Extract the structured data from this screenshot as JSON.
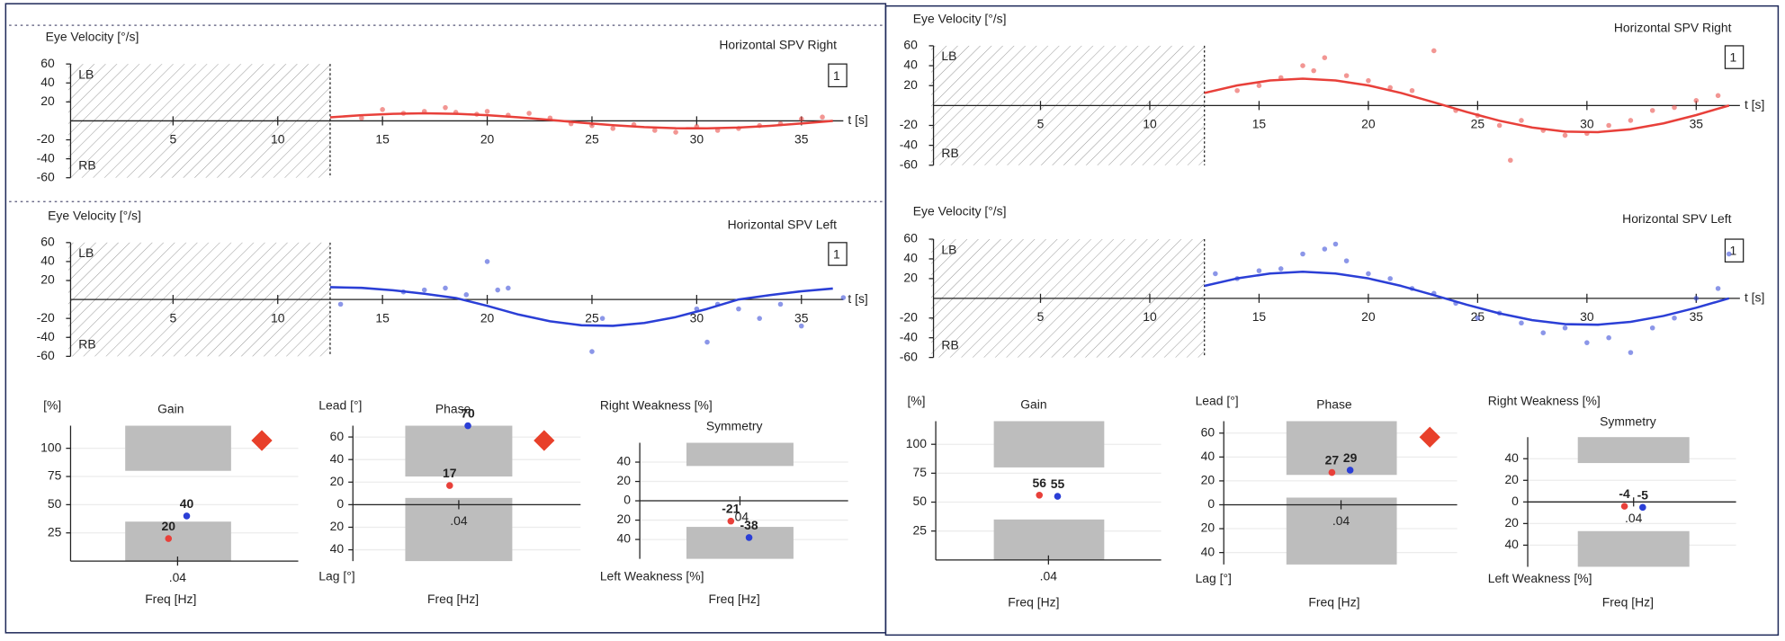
{
  "chart_data": [
    {
      "type": "scatter",
      "title": "Eye Velocity [°/s]",
      "xlabel": "t [s]",
      "annotations": [
        "LB",
        "RB",
        "1"
      ],
      "xlim": [
        0,
        37
      ],
      "xticks": [
        5,
        10,
        15,
        20,
        25,
        30,
        35
      ],
      "ylim": [
        -60,
        60
      ],
      "yticks": [
        60,
        40,
        20,
        -20,
        -40,
        -60
      ],
      "shaded_xlim": [
        0,
        12.5
      ],
      "series": [
        {
          "name": "Horizontal SPV Right",
          "color": "#e8403a",
          "x": [
            14,
            15,
            16,
            17,
            18,
            18.5,
            19.5,
            20,
            21,
            22,
            23,
            24,
            25,
            26,
            27,
            28,
            29,
            30,
            31,
            32,
            33,
            34,
            35,
            36
          ],
          "values": [
            3,
            12,
            8,
            10,
            14,
            9,
            7,
            10,
            6,
            8,
            3,
            -3,
            -5,
            -8,
            -4,
            -10,
            -12,
            -6,
            -10,
            -8,
            -5,
            -3,
            2,
            4
          ],
          "fit_x": [
            12.5,
            14,
            15.5,
            17,
            18.5,
            20,
            21.5,
            23,
            24.5,
            26,
            27.5,
            29,
            30.5,
            32,
            33.5,
            35,
            36.5
          ],
          "fit_values": [
            3.7,
            6,
            7.5,
            8,
            7.5,
            6,
            3.7,
            1,
            -1.9,
            -4.5,
            -6.6,
            -7.8,
            -7.9,
            -7.1,
            -5.3,
            -2.8,
            0
          ]
        }
      ]
    },
    {
      "type": "scatter",
      "title": "Eye Velocity [°/s]",
      "xlabel": "t [s]",
      "annotations": [
        "LB",
        "RB",
        "1"
      ],
      "xlim": [
        0,
        37
      ],
      "xticks": [
        5,
        10,
        15,
        20,
        25,
        30,
        35
      ],
      "ylim": [
        -60,
        60
      ],
      "yticks": [
        60,
        40,
        20,
        -20,
        -40,
        -60
      ],
      "shaded_xlim": [
        0,
        12.5
      ],
      "series": [
        {
          "name": "Horizontal SPV Left",
          "color": "#2b3fd6",
          "x": [
            13,
            16,
            17,
            18,
            19,
            20,
            20.5,
            21,
            25,
            25.5,
            30,
            30.5,
            31,
            32,
            33,
            34,
            35,
            37
          ],
          "values": [
            -5,
            8,
            10,
            12,
            5,
            40,
            10,
            12,
            -55,
            -20,
            -10,
            -45,
            -5,
            -10,
            -20,
            -5,
            -28,
            2
          ],
          "fit_x": [
            12.5,
            14,
            15.5,
            17,
            18.5,
            20,
            21.5,
            23,
            24.5,
            26,
            27.5,
            29,
            30.5,
            32,
            33.5,
            35,
            36.5
          ],
          "fit_values": [
            13,
            12.2,
            9.7,
            6,
            1.6,
            -6.7,
            -15.9,
            -23,
            -27.2,
            -27.8,
            -24.8,
            -18.6,
            -9.9,
            0,
            4.6,
            8.6,
            11.5
          ]
        }
      ]
    },
    {
      "type": "dot",
      "title": "Gain",
      "ylabel": "[%]",
      "xlabel": "Freq [Hz]",
      "categories": [
        ".04"
      ],
      "ylim": [
        0,
        120
      ],
      "yticks": [
        25,
        50,
        75,
        100
      ],
      "bands": [
        [
          80,
          120
        ],
        [
          0,
          35
        ]
      ],
      "alert": true,
      "grid": true,
      "series": [
        {
          "color": "#e8403a",
          "values": [
            20
          ]
        },
        {
          "color": "#2b3fd6",
          "values": [
            40
          ]
        }
      ]
    },
    {
      "type": "dot",
      "title": "Phase",
      "ylabel": "Lead [°]",
      "ylabel_bottom": "Lag [°]",
      "xlabel": "Freq [Hz]",
      "categories": [
        ".04"
      ],
      "ylim": [
        -50,
        70
      ],
      "yticks": [
        60,
        40,
        20,
        0,
        {
          "value": -20,
          "label": "20"
        },
        {
          "value": -40,
          "label": "40"
        }
      ],
      "bands": [
        [
          25,
          70
        ],
        [
          -50,
          6
        ]
      ],
      "alert": true,
      "grid": true,
      "series": [
        {
          "color": "#e8403a",
          "values": [
            17
          ]
        },
        {
          "color": "#2b3fd6",
          "values": [
            70
          ]
        }
      ]
    },
    {
      "type": "dot",
      "title": "Symmetry",
      "ylabel": "Right Weakness [%]",
      "ylabel_bottom": "Left Weakness [%]",
      "xlabel": "Freq [Hz]",
      "categories": [
        ".04"
      ],
      "ylim": [
        -60,
        60
      ],
      "yticks": [
        40,
        20,
        0,
        {
          "value": -20,
          "label": "20"
        },
        {
          "value": -40,
          "label": "40"
        }
      ],
      "bands": [
        [
          36,
          60
        ],
        [
          -60,
          -27
        ]
      ],
      "alert": false,
      "grid": true,
      "series": [
        {
          "color": "#e8403a",
          "values": [
            -21
          ]
        },
        {
          "color": "#2b3fd6",
          "values": [
            -38
          ]
        }
      ]
    },
    {
      "type": "scatter",
      "title": "Eye Velocity [°/s]",
      "xlabel": "t [s]",
      "annotations": [
        "LB",
        "RB",
        "1"
      ],
      "xlim": [
        0,
        37
      ],
      "xticks": [
        5,
        10,
        15,
        20,
        25,
        30,
        35
      ],
      "ylim": [
        -60,
        60
      ],
      "yticks": [
        60,
        40,
        20,
        -20,
        -40,
        -60
      ],
      "shaded_xlim": [
        0,
        12.5
      ],
      "series": [
        {
          "name": "Horizontal SPV Right",
          "color": "#e8403a",
          "x": [
            14,
            15,
            16,
            17,
            17.5,
            18,
            19,
            20,
            21,
            22,
            23,
            24,
            25,
            26,
            26.5,
            27,
            28,
            29,
            30,
            31,
            32,
            33,
            34,
            35,
            36
          ],
          "values": [
            15,
            20,
            28,
            40,
            35,
            48,
            30,
            25,
            18,
            15,
            55,
            -5,
            -10,
            -20,
            -55,
            -15,
            -25,
            -30,
            -28,
            -20,
            -15,
            -5,
            -2,
            5,
            10
          ],
          "fit_x": [
            12.5,
            14,
            15.5,
            17,
            18.5,
            20,
            21.5,
            23,
            24.5,
            26,
            27.5,
            29,
            30.5,
            32,
            33.5,
            35,
            36.5
          ],
          "fit_values": [
            12.6,
            20.2,
            25.2,
            27,
            25.2,
            20.2,
            12.6,
            3.2,
            -6.5,
            -15.3,
            -22.2,
            -26.2,
            -26.8,
            -23.9,
            -17.9,
            -9.6,
            0
          ]
        }
      ]
    },
    {
      "type": "scatter",
      "title": "Eye Velocity [°/s]",
      "xlabel": "t [s]",
      "annotations": [
        "LB",
        "RB",
        "1"
      ],
      "xlim": [
        0,
        37
      ],
      "xticks": [
        5,
        10,
        15,
        20,
        25,
        30,
        35
      ],
      "ylim": [
        -60,
        60
      ],
      "yticks": [
        60,
        40,
        20,
        -20,
        -40,
        -60
      ],
      "shaded_xlim": [
        0,
        12.5
      ],
      "series": [
        {
          "name": "Horizontal SPV Left",
          "color": "#2b3fd6",
          "x": [
            13,
            14,
            15,
            16,
            17,
            18,
            18.5,
            19,
            20,
            21,
            22,
            23,
            24,
            25,
            26,
            27,
            28,
            29,
            30,
            31,
            32,
            33,
            34,
            35,
            36,
            36.5
          ],
          "values": [
            25,
            20,
            28,
            30,
            45,
            50,
            55,
            38,
            25,
            20,
            10,
            5,
            -5,
            -20,
            -15,
            -25,
            -35,
            -30,
            -45,
            -40,
            -55,
            -30,
            -20,
            0,
            10,
            45
          ],
          "fit_x": [
            12.5,
            14,
            15.5,
            17,
            18.5,
            20,
            21.5,
            23,
            24.5,
            26,
            27.5,
            29,
            30.5,
            32,
            33.5,
            35,
            36.5
          ],
          "fit_values": [
            12.6,
            20.2,
            25.2,
            27,
            25.2,
            20.2,
            12.6,
            3.2,
            -6.5,
            -15.3,
            -22.2,
            -26.2,
            -26.8,
            -23.9,
            -17.9,
            -9.6,
            0
          ]
        }
      ]
    },
    {
      "type": "dot",
      "title": "Gain",
      "ylabel": "[%]",
      "xlabel": "Freq [Hz]",
      "categories": [
        ".04"
      ],
      "ylim": [
        0,
        120
      ],
      "yticks": [
        25,
        50,
        75,
        100
      ],
      "bands": [
        [
          80,
          120
        ],
        [
          0,
          35
        ]
      ],
      "alert": false,
      "grid": true,
      "series": [
        {
          "color": "#e8403a",
          "values": [
            56
          ]
        },
        {
          "color": "#2b3fd6",
          "values": [
            55
          ]
        }
      ]
    },
    {
      "type": "dot",
      "title": "Phase",
      "ylabel": "Lead [°]",
      "ylabel_bottom": "Lag [°]",
      "xlabel": "Freq [Hz]",
      "categories": [
        ".04"
      ],
      "ylim": [
        -50,
        70
      ],
      "yticks": [
        60,
        40,
        20,
        0,
        {
          "value": -20,
          "label": "20"
        },
        {
          "value": -40,
          "label": "40"
        }
      ],
      "bands": [
        [
          25,
          70
        ],
        [
          -50,
          6
        ]
      ],
      "alert": true,
      "grid": true,
      "series": [
        {
          "color": "#e8403a",
          "values": [
            27
          ]
        },
        {
          "color": "#2b3fd6",
          "values": [
            29
          ]
        }
      ]
    },
    {
      "type": "dot",
      "title": "Symmetry",
      "ylabel": "Right Weakness [%]",
      "ylabel_bottom": "Left Weakness [%]",
      "xlabel": "Freq [Hz]",
      "categories": [
        ".04"
      ],
      "ylim": [
        -60,
        60
      ],
      "yticks": [
        40,
        20,
        0,
        {
          "value": -20,
          "label": "20"
        },
        {
          "value": -40,
          "label": "40"
        }
      ],
      "bands": [
        [
          36,
          60
        ],
        [
          -60,
          -27
        ]
      ],
      "alert": false,
      "grid": true,
      "series": [
        {
          "color": "#e8403a",
          "values": [
            -4
          ]
        },
        {
          "color": "#2b3fd6",
          "values": [
            -5
          ]
        }
      ]
    }
  ]
}
